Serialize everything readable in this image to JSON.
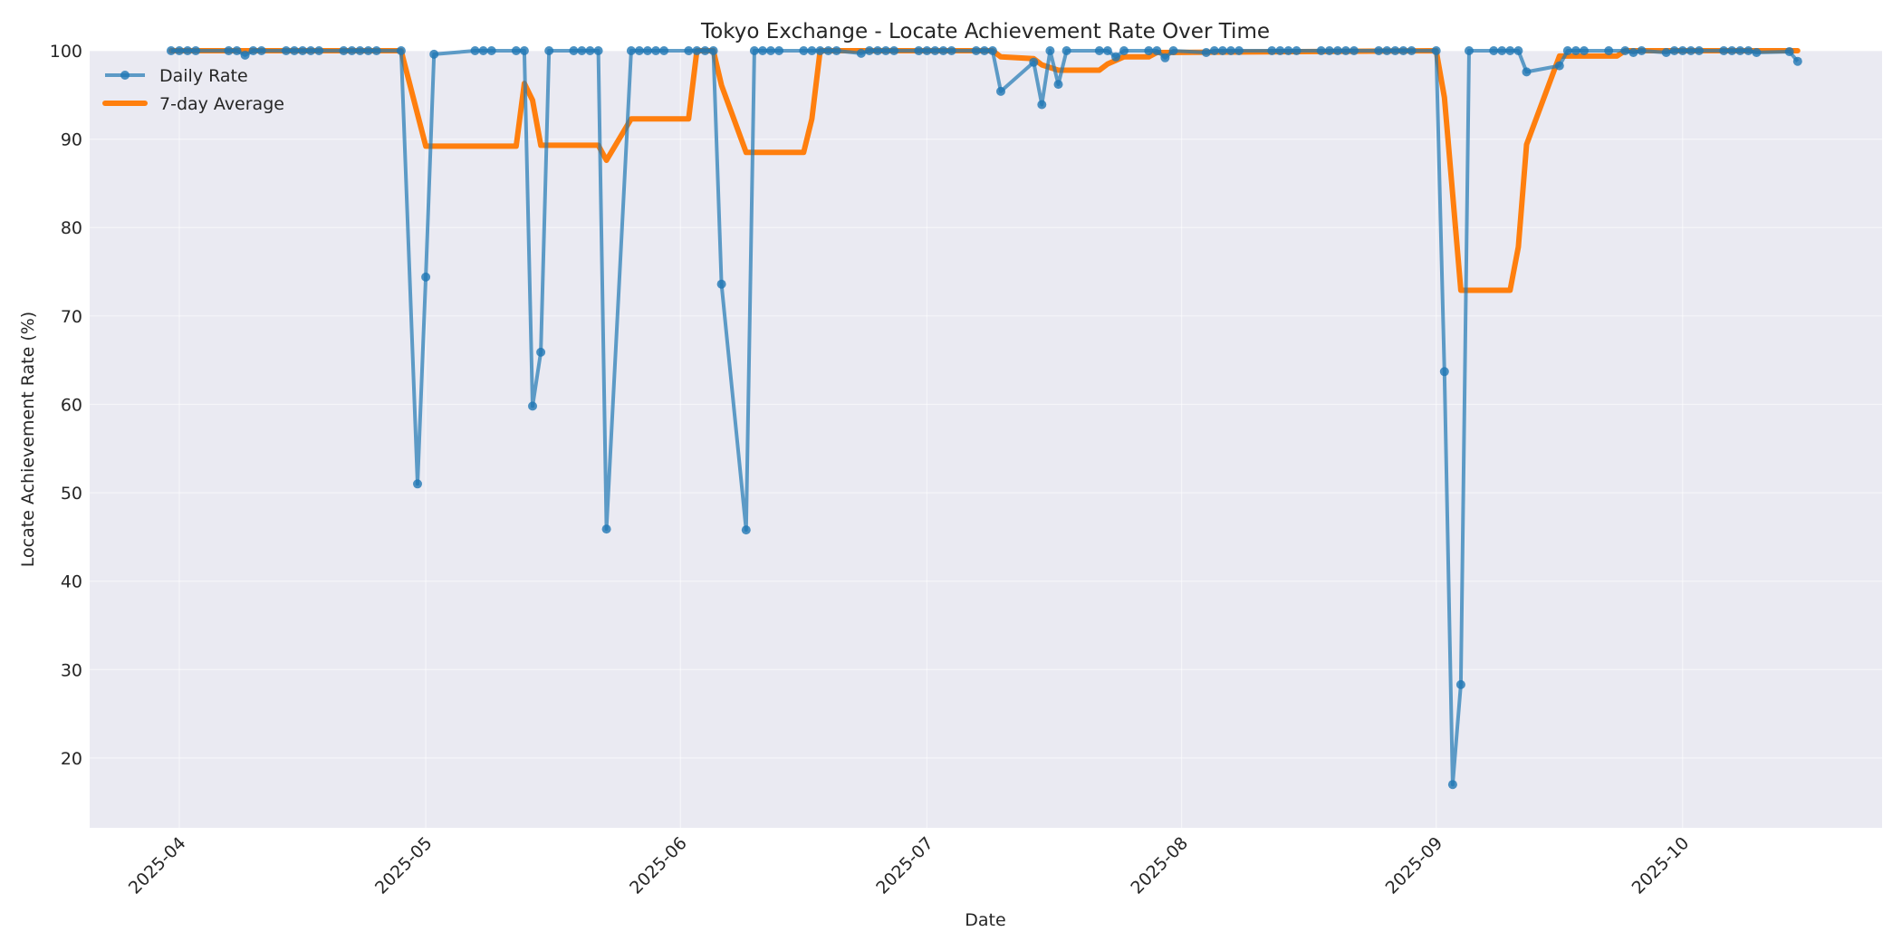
{
  "chart_data": {
    "type": "line",
    "title": "Tokyo Exchange - Locate Achievement Rate Over Time",
    "xlabel": "Date",
    "ylabel": "Locate Achievement Rate (%)",
    "ylim": [
      12.1,
      100
    ],
    "xlim": [
      "2025-03-26",
      "2025-10-22"
    ],
    "grid": true,
    "legend_position": "upper left",
    "x_ticks": [
      "2025-04",
      "2025-05",
      "2025-06",
      "2025-07",
      "2025-08",
      "2025-09",
      "2025-10"
    ],
    "x_tick_dates": [
      "2025-04-01",
      "2025-05-01",
      "2025-06-01",
      "2025-07-01",
      "2025-08-01",
      "2025-09-01",
      "2025-10-01"
    ],
    "y_ticks": [
      20,
      30,
      40,
      50,
      60,
      70,
      80,
      90,
      100
    ],
    "colors": {
      "daily": "#1f77b4",
      "average": "#ff7f0e",
      "plot_bg": "#eaeaf2",
      "grid": "#ffffff"
    },
    "series": [
      {
        "name": "Daily Rate",
        "style": "line+marker",
        "points": [
          [
            "2025-03-31",
            100
          ],
          [
            "2025-04-01",
            100
          ],
          [
            "2025-04-02",
            100
          ],
          [
            "2025-04-03",
            100
          ],
          [
            "2025-04-07",
            100
          ],
          [
            "2025-04-08",
            100
          ],
          [
            "2025-04-09",
            99.5
          ],
          [
            "2025-04-10",
            100
          ],
          [
            "2025-04-11",
            100
          ],
          [
            "2025-04-14",
            100
          ],
          [
            "2025-04-15",
            100
          ],
          [
            "2025-04-16",
            100
          ],
          [
            "2025-04-17",
            100
          ],
          [
            "2025-04-18",
            100
          ],
          [
            "2025-04-21",
            100
          ],
          [
            "2025-04-22",
            100
          ],
          [
            "2025-04-23",
            100
          ],
          [
            "2025-04-24",
            100
          ],
          [
            "2025-04-25",
            100
          ],
          [
            "2025-04-28",
            100
          ],
          [
            "2025-04-30",
            51.0
          ],
          [
            "2025-05-01",
            74.4
          ],
          [
            "2025-05-02",
            99.6
          ],
          [
            "2025-05-07",
            100
          ],
          [
            "2025-05-08",
            100
          ],
          [
            "2025-05-09",
            100
          ],
          [
            "2025-05-12",
            100
          ],
          [
            "2025-05-13",
            100
          ],
          [
            "2025-05-14",
            59.8
          ],
          [
            "2025-05-15",
            65.9
          ],
          [
            "2025-05-16",
            100
          ],
          [
            "2025-05-19",
            100
          ],
          [
            "2025-05-20",
            100
          ],
          [
            "2025-05-21",
            100
          ],
          [
            "2025-05-22",
            100
          ],
          [
            "2025-05-23",
            45.9
          ],
          [
            "2025-05-26",
            100
          ],
          [
            "2025-05-27",
            100
          ],
          [
            "2025-05-28",
            100
          ],
          [
            "2025-05-29",
            100
          ],
          [
            "2025-05-30",
            100
          ],
          [
            "2025-06-02",
            100
          ],
          [
            "2025-06-03",
            100
          ],
          [
            "2025-06-04",
            100
          ],
          [
            "2025-06-05",
            100
          ],
          [
            "2025-06-06",
            73.6
          ],
          [
            "2025-06-09",
            45.8
          ],
          [
            "2025-06-10",
            100
          ],
          [
            "2025-06-11",
            100
          ],
          [
            "2025-06-12",
            100
          ],
          [
            "2025-06-13",
            100
          ],
          [
            "2025-06-16",
            100
          ],
          [
            "2025-06-17",
            100
          ],
          [
            "2025-06-18",
            100
          ],
          [
            "2025-06-19",
            100
          ],
          [
            "2025-06-20",
            100
          ],
          [
            "2025-06-23",
            99.7
          ],
          [
            "2025-06-24",
            100
          ],
          [
            "2025-06-25",
            100
          ],
          [
            "2025-06-26",
            100
          ],
          [
            "2025-06-27",
            100
          ],
          [
            "2025-06-30",
            100
          ],
          [
            "2025-07-01",
            100
          ],
          [
            "2025-07-02",
            100
          ],
          [
            "2025-07-03",
            100
          ],
          [
            "2025-07-04",
            100
          ],
          [
            "2025-07-07",
            100
          ],
          [
            "2025-07-08",
            100
          ],
          [
            "2025-07-09",
            100
          ],
          [
            "2025-07-10",
            95.4
          ],
          [
            "2025-07-14",
            98.7
          ],
          [
            "2025-07-15",
            93.9
          ],
          [
            "2025-07-16",
            100
          ],
          [
            "2025-07-17",
            96.2
          ],
          [
            "2025-07-18",
            100
          ],
          [
            "2025-07-22",
            100
          ],
          [
            "2025-07-23",
            100
          ],
          [
            "2025-07-24",
            99.3
          ],
          [
            "2025-07-25",
            100
          ],
          [
            "2025-07-28",
            100
          ],
          [
            "2025-07-29",
            100
          ],
          [
            "2025-07-30",
            99.2
          ],
          [
            "2025-07-31",
            100
          ],
          [
            "2025-08-04",
            99.8
          ],
          [
            "2025-08-05",
            100
          ],
          [
            "2025-08-06",
            100
          ],
          [
            "2025-08-07",
            100
          ],
          [
            "2025-08-08",
            100
          ],
          [
            "2025-08-12",
            100
          ],
          [
            "2025-08-13",
            100
          ],
          [
            "2025-08-14",
            100
          ],
          [
            "2025-08-15",
            100
          ],
          [
            "2025-08-18",
            100
          ],
          [
            "2025-08-19",
            100
          ],
          [
            "2025-08-20",
            100
          ],
          [
            "2025-08-21",
            100
          ],
          [
            "2025-08-22",
            100
          ],
          [
            "2025-08-25",
            100
          ],
          [
            "2025-08-26",
            100
          ],
          [
            "2025-08-27",
            100
          ],
          [
            "2025-08-28",
            100
          ],
          [
            "2025-08-29",
            100
          ],
          [
            "2025-09-01",
            100
          ],
          [
            "2025-09-02",
            63.7
          ],
          [
            "2025-09-03",
            17.0
          ],
          [
            "2025-09-04",
            28.3
          ],
          [
            "2025-09-05",
            100
          ],
          [
            "2025-09-08",
            100
          ],
          [
            "2025-09-09",
            100
          ],
          [
            "2025-09-10",
            100
          ],
          [
            "2025-09-11",
            100
          ],
          [
            "2025-09-12",
            97.6
          ],
          [
            "2025-09-16",
            98.3
          ],
          [
            "2025-09-17",
            100
          ],
          [
            "2025-09-18",
            100
          ],
          [
            "2025-09-19",
            100
          ],
          [
            "2025-09-22",
            100
          ],
          [
            "2025-09-24",
            100
          ],
          [
            "2025-09-25",
            99.8
          ],
          [
            "2025-09-26",
            100
          ],
          [
            "2025-09-29",
            99.8
          ],
          [
            "2025-09-30",
            100
          ],
          [
            "2025-10-01",
            100
          ],
          [
            "2025-10-02",
            100
          ],
          [
            "2025-10-03",
            100
          ],
          [
            "2025-10-06",
            100
          ],
          [
            "2025-10-07",
            100
          ],
          [
            "2025-10-08",
            100
          ],
          [
            "2025-10-09",
            100
          ],
          [
            "2025-10-10",
            99.8
          ],
          [
            "2025-10-14",
            99.9
          ],
          [
            "2025-10-15",
            98.8
          ]
        ]
      },
      {
        "name": "7-day Average",
        "style": "line",
        "points": [
          [
            "2025-03-31",
            100
          ],
          [
            "2025-04-28",
            100
          ],
          [
            "2025-05-01",
            89.2
          ],
          [
            "2025-05-12",
            89.2
          ],
          [
            "2025-05-13",
            96.3
          ],
          [
            "2025-05-14",
            94.4
          ],
          [
            "2025-05-15",
            89.3
          ],
          [
            "2025-05-22",
            89.3
          ],
          [
            "2025-05-23",
            87.6
          ],
          [
            "2025-05-26",
            92.3
          ],
          [
            "2025-06-02",
            92.3
          ],
          [
            "2025-06-03",
            100
          ],
          [
            "2025-06-05",
            100
          ],
          [
            "2025-06-06",
            96.1
          ],
          [
            "2025-06-09",
            88.5
          ],
          [
            "2025-06-16",
            88.5
          ],
          [
            "2025-06-17",
            92.3
          ],
          [
            "2025-06-18",
            100
          ],
          [
            "2025-07-09",
            100
          ],
          [
            "2025-07-10",
            99.3
          ],
          [
            "2025-07-14",
            99.1
          ],
          [
            "2025-07-15",
            98.4
          ],
          [
            "2025-07-17",
            97.8
          ],
          [
            "2025-07-22",
            97.8
          ],
          [
            "2025-07-23",
            98.5
          ],
          [
            "2025-07-25",
            99.3
          ],
          [
            "2025-07-28",
            99.3
          ],
          [
            "2025-07-29",
            99.8
          ],
          [
            "2025-09-01",
            100
          ],
          [
            "2025-09-02",
            94.7
          ],
          [
            "2025-09-04",
            72.9
          ],
          [
            "2025-09-10",
            72.9
          ],
          [
            "2025-09-11",
            77.8
          ],
          [
            "2025-09-12",
            89.4
          ],
          [
            "2025-09-16",
            99.4
          ],
          [
            "2025-09-23",
            99.4
          ],
          [
            "2025-09-24",
            100
          ],
          [
            "2025-10-15",
            100
          ]
        ]
      }
    ]
  }
}
